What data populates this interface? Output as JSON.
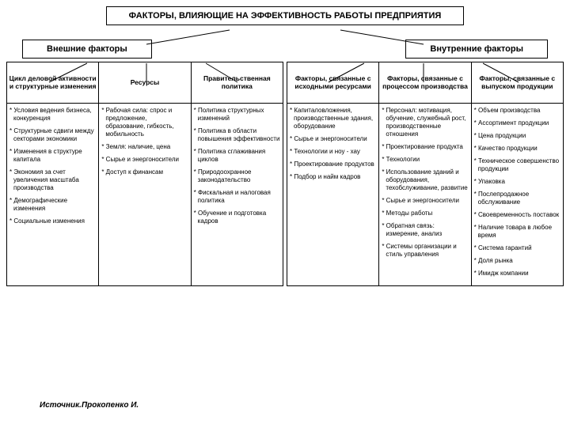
{
  "title": "ФАКТОРЫ, ВЛИЯЮЩИЕ НА ЭФФЕКТИВНОСТЬ\nРАБОТЫ ПРЕДПРИЯТИЯ",
  "branches": {
    "external": {
      "label": "Внешние факторы"
    },
    "internal": {
      "label": "Внутренние факторы"
    }
  },
  "columns": [
    {
      "group": "external",
      "header": "Цикл деловой активности и структурные изменения",
      "items": [
        "Условия ведения бизнеса, конкуренция",
        "Структурные сдвиги между секторами экономики",
        "Изменения в структуре капитала",
        "Экономия за счет увеличения масштаба производства",
        "Демографические изменения",
        "Социальные изменения"
      ]
    },
    {
      "group": "external",
      "header": "Ресурсы",
      "items": [
        "Рабочая сила: спрос и предложение, образование, гибкость, мобильность",
        "Земля: наличие, цена",
        "Сырье и энергоносители",
        "Доступ к финансам"
      ]
    },
    {
      "group": "external",
      "header": "Правительственная политика",
      "items": [
        "Политика структурных изменений",
        "Политика в области повышения эффективности",
        "Политика сглаживания циклов",
        "Природоохранное законодательство",
        "Фискальная и налоговая политика",
        "Обучение и подготовка кадров"
      ]
    },
    {
      "group": "internal",
      "header": "Факторы, связанные с исходными ресурсами",
      "items": [
        "Капиталовложения, производственные здания, оборудование",
        "Сырье и энергоносители",
        "Технологии и ноу - хау",
        "Проектирование продуктов",
        "Подбор и найм кадров"
      ]
    },
    {
      "group": "internal",
      "header": "Факторы, связанные с процессом производства",
      "items": [
        "Персонал: мотивация, обучение, служебный рост, производственные отношения",
        "Проектирование продукта",
        "Технологии",
        "Использование зданий и оборудования, техобслуживание, развитие",
        "Сырье и энергоносители",
        "Методы работы",
        "Обратная связь: измерение, анализ",
        "Системы организации и стиль управления"
      ]
    },
    {
      "group": "internal",
      "header": "Факторы, связанные с выпуском продукции",
      "items": [
        "Объем производства",
        "Ассортимент продукции",
        "Цена продукции",
        "Качество продукции",
        "Техническое совершенство продукции",
        "Упаковка",
        "Послепродажное обслуживание",
        "Своевременность поставок",
        "Наличие товара в любое время",
        "Система гарантий",
        "Доля рынка",
        "Имидж компании"
      ]
    }
  ],
  "source": "Источник.Прокопенко И.",
  "style": {
    "border_color": "#000000",
    "background_color": "#ffffff",
    "title_fontsize": 11,
    "branch_fontsize": 11,
    "header_fontsize": 8.5,
    "item_fontsize": 8,
    "line_width": 1
  }
}
